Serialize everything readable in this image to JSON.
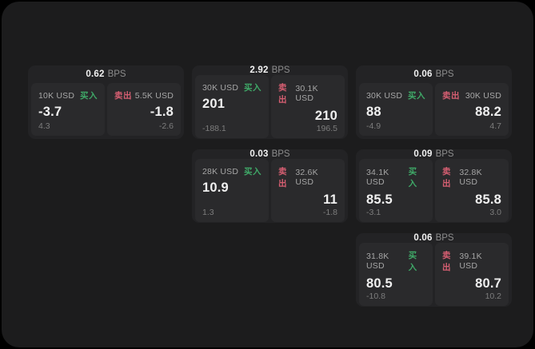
{
  "labels": {
    "bps_unit": "BPS",
    "buy": "买入",
    "sell": "卖出"
  },
  "colors": {
    "buy_green": "#3fa968",
    "sell_red": "#d75f72",
    "app_background": "#1c1c1d",
    "card_background": "#232325",
    "panel_background": "#2a2a2c"
  },
  "cards": [
    {
      "col": 1,
      "row": 1,
      "bps": "0.62",
      "buy": {
        "size": "10K USD",
        "value": "-3.7",
        "sub": "4.3"
      },
      "sell": {
        "size": "5.5K USD",
        "value": "-1.8",
        "sub": "-2.6"
      }
    },
    {
      "col": 2,
      "row": 1,
      "bps": "2.92",
      "buy": {
        "size": "30K USD",
        "value": "201",
        "sub": "-188.1"
      },
      "sell": {
        "size": "30.1K USD",
        "value": "210",
        "sub": "196.5"
      }
    },
    {
      "col": 3,
      "row": 1,
      "bps": "0.06",
      "buy": {
        "size": "30K USD",
        "value": "88",
        "sub": "-4.9"
      },
      "sell": {
        "size": "30K USD",
        "value": "88.2",
        "sub": "4.7"
      }
    },
    {
      "col": 2,
      "row": 2,
      "bps": "0.03",
      "buy": {
        "size": "28K USD",
        "value": "10.9",
        "sub": "1.3"
      },
      "sell": {
        "size": "32.6K USD",
        "value": "11",
        "sub": "-1.8"
      }
    },
    {
      "col": 3,
      "row": 2,
      "bps": "0.09",
      "buy": {
        "size": "34.1K USD",
        "value": "85.5",
        "sub": "-3.1"
      },
      "sell": {
        "size": "32.8K USD",
        "value": "85.8",
        "sub": "3.0"
      }
    },
    {
      "col": 3,
      "row": 3,
      "bps": "0.06",
      "buy": {
        "size": "31.8K USD",
        "value": "80.5",
        "sub": "-10.8"
      },
      "sell": {
        "size": "39.1K USD",
        "value": "80.7",
        "sub": "10.2"
      }
    }
  ]
}
